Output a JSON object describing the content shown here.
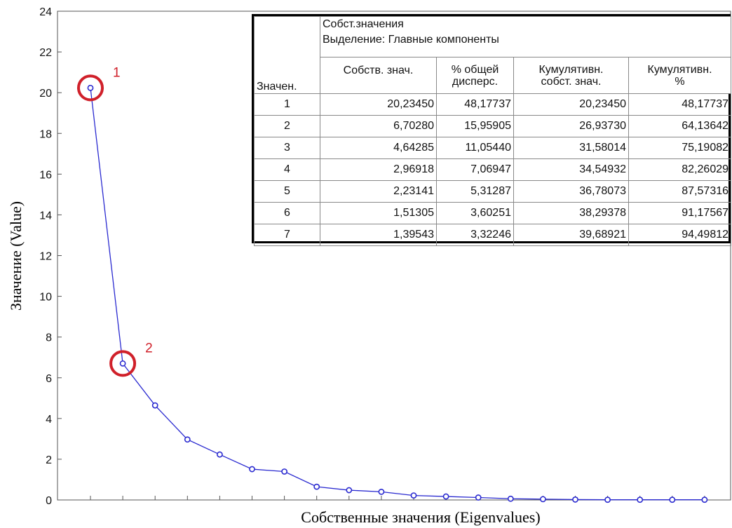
{
  "chart_data": {
    "type": "line",
    "xlabel": "Собственные значения (Eigenvalues)",
    "ylabel": "Значение (Value)",
    "ylim": [
      0,
      24
    ],
    "yticks": [
      0,
      2,
      4,
      6,
      8,
      10,
      12,
      14,
      16,
      18,
      20,
      22,
      24
    ],
    "grid": false,
    "x": [
      1,
      2,
      3,
      4,
      5,
      6,
      7,
      8,
      9,
      10,
      11,
      12,
      13,
      14,
      15,
      16,
      17,
      18,
      19,
      20
    ],
    "values": [
      20.2345,
      6.7028,
      4.64285,
      2.96918,
      2.23141,
      1.51305,
      1.39543,
      0.65,
      0.48,
      0.4,
      0.22,
      0.17,
      0.12,
      0.06,
      0.04,
      0.02,
      0.01,
      0.01,
      0.01,
      0.01
    ],
    "series_color": "#2a2ad0",
    "annotations": [
      {
        "label": "1",
        "x": 1,
        "color": "#d0202a"
      },
      {
        "label": "2",
        "x": 2,
        "color": "#d0202a"
      }
    ]
  },
  "table": {
    "group_header_line1": "Собст.значения",
    "group_header_line2": "Выделение: Главные компоненты",
    "corner_header": "Значен.",
    "columns": [
      {
        "line1": "Собств. знач.",
        "line2": ""
      },
      {
        "line1": "% общей",
        "line2": "дисперс."
      },
      {
        "line1": "Кумулятивн.",
        "line2": "собст. знач."
      },
      {
        "line1": "Кумулятивн.",
        "line2": "%"
      }
    ],
    "rows": [
      [
        "1",
        "20,23450",
        "48,17737",
        "20,23450",
        "48,17737"
      ],
      [
        "2",
        "6,70280",
        "15,95905",
        "26,93730",
        "64,13642"
      ],
      [
        "3",
        "4,64285",
        "11,05440",
        "31,58014",
        "75,19082"
      ],
      [
        "4",
        "2,96918",
        "7,06947",
        "34,54932",
        "82,26029"
      ],
      [
        "5",
        "2,23141",
        "5,31287",
        "36,78073",
        "87,57316"
      ],
      [
        "6",
        "1,51305",
        "3,60251",
        "38,29378",
        "91,17567"
      ],
      [
        "7",
        "1,39543",
        "3,32246",
        "39,68921",
        "94,49812"
      ]
    ]
  }
}
